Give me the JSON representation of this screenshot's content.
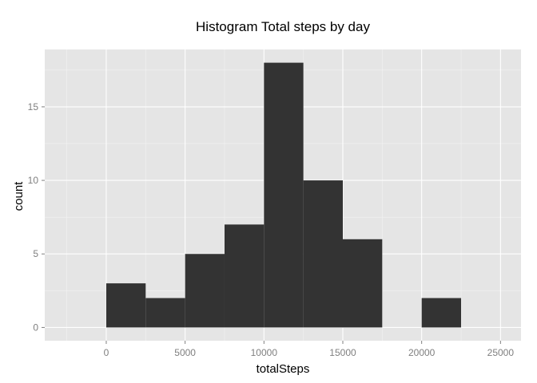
{
  "chart_data": {
    "type": "histogram",
    "title": "Histogram Total steps by day",
    "xlabel": "totalSteps",
    "ylabel": "count",
    "bin_width": 2500,
    "bins": [
      {
        "start": 0,
        "end": 2500,
        "count": 3
      },
      {
        "start": 2500,
        "end": 5000,
        "count": 2
      },
      {
        "start": 5000,
        "end": 7500,
        "count": 5
      },
      {
        "start": 7500,
        "end": 10000,
        "count": 7
      },
      {
        "start": 10000,
        "end": 12500,
        "count": 18
      },
      {
        "start": 12500,
        "end": 15000,
        "count": 10
      },
      {
        "start": 15000,
        "end": 17500,
        "count": 6
      },
      {
        "start": 17500,
        "end": 20000,
        "count": 0
      },
      {
        "start": 20000,
        "end": 22500,
        "count": 2
      }
    ],
    "xlim": [
      -3900,
      26300
    ],
    "ylim": [
      -0.9,
      18.9
    ],
    "x_ticks": [
      0,
      5000,
      10000,
      15000,
      20000,
      25000
    ],
    "y_ticks": [
      0,
      5,
      10,
      15
    ],
    "bar_color": "#333333",
    "panel_background": "#e5e5e5",
    "grid": true,
    "legend": "none"
  }
}
